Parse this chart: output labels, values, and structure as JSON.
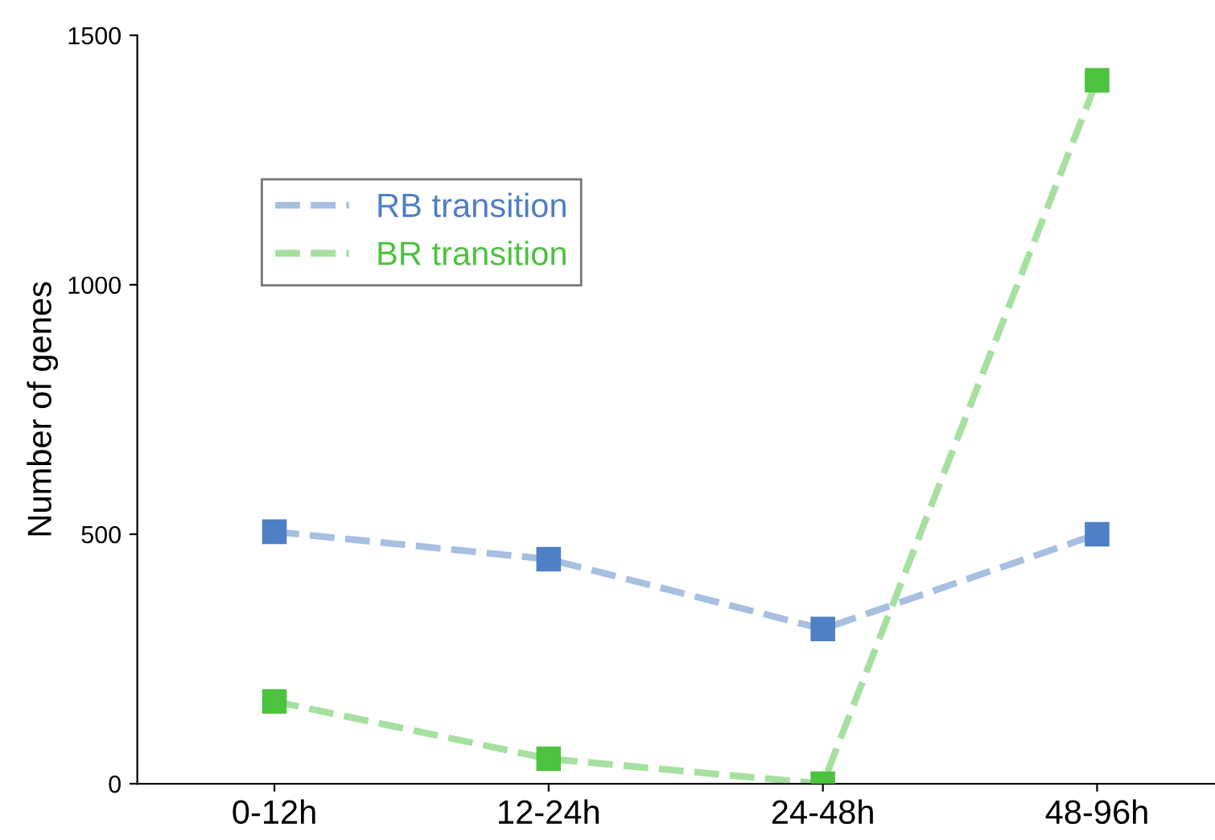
{
  "chart_data": {
    "type": "line",
    "ylabel": "Number of genes",
    "categories": [
      "0-12h",
      "12-24h",
      "24-48h",
      "48-96h"
    ],
    "series": [
      {
        "name": "RB transition",
        "color": "#4f7fc4",
        "values": [
          505,
          450,
          310,
          500
        ]
      },
      {
        "name": "BR transition",
        "color": "#4cc23f",
        "values": [
          165,
          50,
          0,
          1410
        ]
      }
    ],
    "ylim": [
      0,
      1500
    ],
    "yticks": [
      0,
      500,
      1000,
      1500
    ],
    "marker": "square",
    "line_style": "dashed",
    "legend": "top left",
    "grid": false
  }
}
